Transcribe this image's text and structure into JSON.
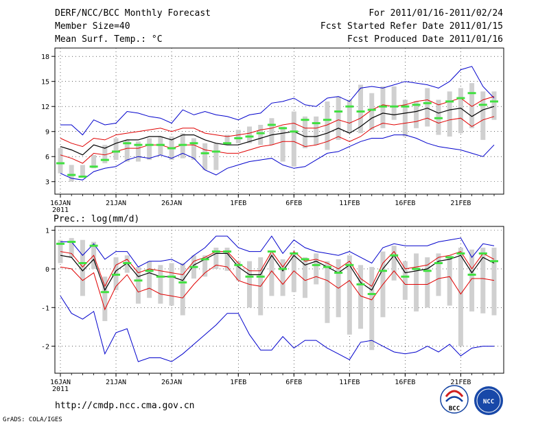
{
  "header": {
    "title": "DERF/NCC/BCC Monthly Forecast",
    "member": "Member Size=40",
    "variable": "Mean Surf. Temp.: °C",
    "period": "For 2011/01/16-2011/02/24",
    "fcst_start": "Fcst Started Refer Date 2011/01/15",
    "fcst_produced": "Fcst Produced Date 2011/01/16"
  },
  "footer": {
    "url": "http://cmdp.ncc.cma.gov.cn",
    "credit": "GrADS: COLA/IGES",
    "logo_left": "BCC",
    "logo_right": "NCC"
  },
  "colors": {
    "mean": "#000000",
    "spread": "#e00000",
    "extreme": "#0000cc",
    "box": "#d0d0d0",
    "obs": "#40e040",
    "grid": "#000000"
  },
  "x_axis": {
    "tick_labels": [
      "16JAN",
      "21JAN",
      "26JAN",
      "1FEB",
      "6FEB",
      "11FEB",
      "16FEB",
      "21FEB"
    ],
    "tick_days": [
      1,
      6,
      11,
      17,
      22,
      27,
      32,
      37
    ],
    "year_label": "2011",
    "days": 40
  },
  "chart_data": [
    {
      "type": "line",
      "title": "Mean Surf. Temp.: °C",
      "ylim": [
        1.5,
        19
      ],
      "yticks": [
        3,
        6,
        9,
        12,
        15,
        18
      ],
      "x": [
        1,
        2,
        3,
        4,
        5,
        6,
        7,
        8,
        9,
        10,
        11,
        12,
        13,
        14,
        15,
        16,
        17,
        18,
        19,
        20,
        21,
        22,
        23,
        24,
        25,
        26,
        27,
        28,
        29,
        30,
        31,
        32,
        33,
        34,
        35,
        36,
        37,
        38,
        39,
        40
      ],
      "series": [
        {
          "name": "ensemble mean",
          "values": [
            7.2,
            6.8,
            6.2,
            7.4,
            7.0,
            7.6,
            8.0,
            8.0,
            8.4,
            8.4,
            8.0,
            8.6,
            8.6,
            8.0,
            7.6,
            7.4,
            7.4,
            7.8,
            8.2,
            8.6,
            8.8,
            9.0,
            8.4,
            8.4,
            8.8,
            9.4,
            8.8,
            9.6,
            10.6,
            11.2,
            11.0,
            11.2,
            11.4,
            11.8,
            11.2,
            11.6,
            11.8,
            10.8,
            11.6,
            12.0
          ]
        },
        {
          "name": "spread upper",
          "values": [
            8.2,
            7.6,
            7.2,
            8.2,
            8.0,
            8.6,
            8.8,
            9.0,
            9.2,
            9.4,
            9.0,
            9.4,
            9.4,
            8.8,
            8.6,
            8.4,
            8.6,
            8.8,
            9.2,
            9.4,
            9.8,
            10.0,
            9.4,
            9.4,
            9.8,
            10.4,
            10.0,
            10.6,
            11.6,
            12.2,
            12.0,
            12.2,
            12.6,
            12.8,
            12.2,
            12.6,
            13.0,
            12.0,
            12.8,
            13.2
          ]
        },
        {
          "name": "spread lower",
          "values": [
            6.2,
            5.8,
            5.2,
            6.4,
            6.2,
            6.6,
            7.0,
            7.0,
            7.4,
            7.4,
            7.0,
            7.4,
            7.4,
            6.8,
            6.6,
            6.4,
            6.4,
            6.8,
            7.2,
            7.4,
            7.8,
            7.8,
            7.2,
            7.4,
            7.8,
            8.4,
            7.8,
            8.4,
            9.4,
            10.0,
            9.8,
            10.0,
            10.2,
            10.6,
            10.0,
            10.4,
            10.6,
            9.6,
            10.4,
            10.8
          ]
        },
        {
          "name": "maximum",
          "values": [
            9.8,
            9.8,
            8.6,
            10.4,
            9.8,
            10.0,
            11.4,
            11.2,
            10.8,
            10.6,
            10.0,
            11.6,
            11.0,
            11.4,
            11.0,
            10.8,
            10.4,
            11.0,
            11.2,
            12.4,
            12.6,
            13.0,
            12.2,
            12.0,
            13.0,
            13.2,
            12.6,
            14.2,
            14.4,
            14.2,
            14.6,
            15.0,
            14.8,
            14.6,
            14.2,
            15.0,
            16.4,
            16.8,
            14.4,
            13.0
          ]
        },
        {
          "name": "minimum",
          "values": [
            4.0,
            3.4,
            3.2,
            4.2,
            4.6,
            4.8,
            5.6,
            6.0,
            5.8,
            6.2,
            5.8,
            6.4,
            5.8,
            4.4,
            3.8,
            4.6,
            5.0,
            5.4,
            5.6,
            5.8,
            5.0,
            4.6,
            4.8,
            5.6,
            6.4,
            6.6,
            7.2,
            7.8,
            8.2,
            8.2,
            8.6,
            8.6,
            8.2,
            7.6,
            7.2,
            7.0,
            6.8,
            6.4,
            6.0,
            7.4
          ]
        },
        {
          "name": "box upper",
          "values": [
            7.0,
            5.0,
            5.0,
            6.2,
            7.4,
            8.2,
            8.0,
            7.8,
            8.2,
            8.4,
            8.4,
            8.8,
            8.2,
            7.6,
            7.6,
            8.6,
            9.2,
            9.6,
            9.8,
            10.6,
            9.6,
            11.4,
            10.8,
            10.8,
            12.6,
            13.2,
            12.8,
            14.6,
            13.6,
            14.4,
            14.4,
            12.8,
            12.6,
            14.2,
            12.8,
            13.8,
            14.2,
            14.8,
            13.8,
            13.8
          ]
        },
        {
          "name": "box lower",
          "values": [
            4.0,
            3.0,
            3.6,
            4.6,
            5.2,
            5.6,
            5.4,
            5.4,
            5.6,
            6.2,
            5.6,
            5.8,
            5.6,
            4.4,
            4.4,
            7.4,
            7.6,
            7.6,
            7.4,
            7.4,
            5.4,
            4.8,
            7.0,
            7.4,
            6.8,
            8.0,
            8.8,
            8.8,
            9.2,
            9.4,
            10.4,
            8.4,
            9.4,
            9.6,
            8.6,
            8.4,
            8.8,
            9.4,
            8.0,
            10.4
          ]
        },
        {
          "name": "observed",
          "values": [
            5.2,
            3.8,
            3.6,
            4.8,
            5.6,
            6.6,
            7.6,
            7.4,
            7.4,
            7.4,
            7.0,
            7.4,
            7.6,
            6.4,
            6.6,
            7.6,
            8.2,
            8.4,
            8.8,
            9.8,
            9.4,
            9.0,
            10.4,
            10.0,
            10.4,
            11.4,
            12.0,
            11.4,
            11.6,
            12.0,
            12.0,
            12.0,
            12.2,
            12.4,
            10.6,
            12.6,
            13.0,
            13.6,
            12.2,
            12.6
          ]
        }
      ]
    },
    {
      "type": "line",
      "title": "Prec.: log(mm/d)",
      "ylim": [
        -2.7,
        1.1
      ],
      "yticks": [
        -2,
        -1,
        0,
        1
      ],
      "x": [
        1,
        2,
        3,
        4,
        5,
        6,
        7,
        8,
        9,
        10,
        11,
        12,
        13,
        14,
        15,
        16,
        17,
        18,
        19,
        20,
        21,
        22,
        23,
        24,
        25,
        26,
        27,
        28,
        29,
        30,
        31,
        32,
        33,
        34,
        35,
        36,
        37,
        38,
        39,
        40
      ],
      "series": [
        {
          "name": "ensemble mean",
          "values": [
            0.35,
            0.3,
            -0.05,
            0.25,
            -0.55,
            -0.05,
            0.15,
            -0.2,
            -0.1,
            -0.2,
            -0.2,
            -0.3,
            0.1,
            0.25,
            0.4,
            0.4,
            0.05,
            -0.15,
            -0.15,
            0.35,
            -0.05,
            0.35,
            0.1,
            0.2,
            0.05,
            -0.1,
            0.1,
            -0.35,
            -0.55,
            0.0,
            0.35,
            -0.1,
            -0.05,
            0.0,
            0.2,
            0.25,
            0.35,
            -0.1,
            0.3,
            0.15
          ]
        },
        {
          "name": "spread upper",
          "values": [
            0.45,
            0.4,
            0.05,
            0.35,
            -0.45,
            0.1,
            0.25,
            -0.1,
            0.0,
            -0.05,
            -0.1,
            -0.15,
            0.2,
            0.3,
            0.45,
            0.45,
            0.15,
            -0.05,
            -0.05,
            0.45,
            0.05,
            0.45,
            0.2,
            0.25,
            0.15,
            0.0,
            0.2,
            -0.25,
            -0.45,
            0.15,
            0.45,
            0.0,
            0.05,
            0.1,
            0.3,
            0.35,
            0.45,
            0.0,
            0.4,
            0.25
          ]
        },
        {
          "name": "spread lower",
          "values": [
            0.05,
            0.0,
            -0.3,
            -0.1,
            -1.05,
            -0.45,
            -0.15,
            -0.6,
            -0.5,
            -0.65,
            -0.7,
            -0.75,
            -0.4,
            -0.1,
            0.1,
            0.05,
            -0.3,
            -0.4,
            -0.45,
            -0.05,
            -0.4,
            -0.05,
            -0.3,
            -0.2,
            -0.3,
            -0.5,
            -0.3,
            -0.7,
            -0.8,
            -0.4,
            -0.05,
            -0.4,
            -0.4,
            -0.4,
            -0.25,
            -0.2,
            -0.65,
            -0.25,
            -0.25,
            -0.3
          ]
        },
        {
          "name": "maximum",
          "values": [
            0.7,
            0.7,
            0.35,
            0.65,
            0.25,
            0.45,
            0.45,
            0.05,
            0.2,
            0.2,
            0.25,
            0.1,
            0.35,
            0.55,
            0.85,
            0.85,
            0.55,
            0.45,
            0.45,
            0.85,
            0.4,
            0.75,
            0.55,
            0.45,
            0.4,
            0.35,
            0.45,
            0.3,
            0.15,
            0.55,
            0.65,
            0.6,
            0.6,
            0.6,
            0.7,
            0.75,
            0.8,
            0.3,
            0.65,
            0.6
          ]
        },
        {
          "name": "minimum",
          "values": [
            -0.7,
            -1.15,
            -1.3,
            -1.1,
            -2.2,
            -1.65,
            -1.55,
            -2.4,
            -2.3,
            -2.3,
            -2.4,
            -2.2,
            -1.95,
            -1.7,
            -1.45,
            -1.15,
            -1.15,
            -1.7,
            -2.1,
            -2.1,
            -1.75,
            -2.05,
            -1.85,
            -1.85,
            -2.05,
            -2.2,
            -2.35,
            -1.9,
            -1.85,
            -2.0,
            -2.15,
            -2.2,
            -2.15,
            -2.0,
            -2.15,
            -1.95,
            -2.25,
            -2.05,
            -2.0,
            -2.0
          ]
        },
        {
          "name": "box upper",
          "values": [
            0.75,
            0.8,
            0.75,
            0.7,
            -0.2,
            0.3,
            0.35,
            0.05,
            0.2,
            0.1,
            0.15,
            0.15,
            0.35,
            0.35,
            0.55,
            0.55,
            0.2,
            0.2,
            0.3,
            0.4,
            0.25,
            0.4,
            0.3,
            0.4,
            0.2,
            0.25,
            0.35,
            0.1,
            0.05,
            0.45,
            0.6,
            0.2,
            0.4,
            0.3,
            0.4,
            0.35,
            0.55,
            0.5,
            0.55,
            0.55
          ]
        },
        {
          "name": "box lower",
          "values": [
            0.15,
            0.3,
            -0.7,
            0.0,
            -1.35,
            -0.55,
            -0.1,
            -0.9,
            -0.75,
            -0.9,
            -0.95,
            -1.2,
            -0.25,
            -0.2,
            0.0,
            -0.05,
            -0.3,
            -1.0,
            -1.2,
            -0.7,
            -0.7,
            -0.6,
            -0.75,
            -0.4,
            -1.4,
            -1.25,
            -1.7,
            -1.55,
            -2.1,
            -1.25,
            -0.3,
            -0.8,
            -1.1,
            -1.0,
            -0.7,
            -0.95,
            -2.0,
            -1.1,
            -1.15,
            -1.2
          ]
        },
        {
          "name": "observed",
          "values": [
            0.65,
            0.7,
            0.15,
            0.6,
            -0.6,
            -0.15,
            0.15,
            -0.3,
            -0.05,
            -0.2,
            -0.2,
            -0.35,
            0.05,
            0.25,
            0.45,
            0.45,
            0.1,
            -0.2,
            -0.2,
            0.45,
            0.0,
            0.4,
            0.25,
            0.1,
            0.05,
            -0.1,
            0.1,
            -0.4,
            -0.65,
            -0.05,
            0.35,
            -0.2,
            0.0,
            -0.05,
            0.15,
            0.3,
            0.4,
            -0.15,
            0.4,
            0.2
          ]
        }
      ]
    }
  ]
}
